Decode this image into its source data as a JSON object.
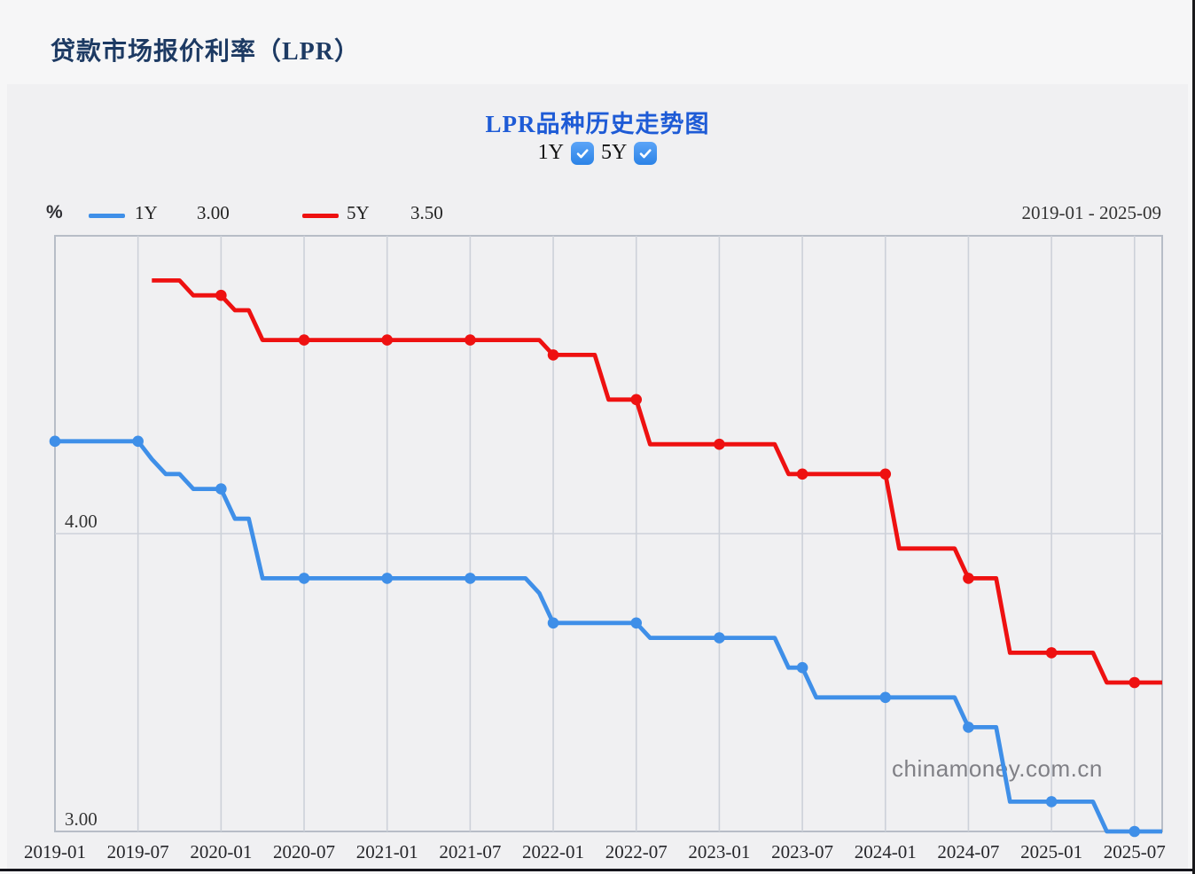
{
  "page": {
    "header_title": "贷款市场报价利率（LPR）",
    "chart_panel_title": "LPR品种历史走势图",
    "toggles": [
      {
        "label": "1Y",
        "checked": true
      },
      {
        "label": "5Y",
        "checked": true
      }
    ],
    "legend": {
      "unit": "%",
      "items": [
        {
          "label": "1Y",
          "value": "3.00"
        },
        {
          "label": "5Y",
          "value": "3.50"
        }
      ]
    },
    "date_range": "2019-01 - 2025-09",
    "watermark": "chinamoney.com.cn",
    "colors": {
      "header_title": "#1d3a63",
      "chart_title": "#1e5bd6",
      "checkbox_blue": "#2e8bf5",
      "line_1y": "#3f8fe8",
      "line_5y": "#ee1111"
    }
  },
  "chart_data": {
    "type": "line",
    "title": "LPR品种历史走势图",
    "x_unit": "month",
    "x_start": "2019-01",
    "x_end": "2025-09",
    "x_tick_labels": [
      "2019-01",
      "2019-07",
      "2020-01",
      "2020-07",
      "2021-01",
      "2021-07",
      "2022-01",
      "2022-07",
      "2023-01",
      "2023-07",
      "2024-01",
      "2024-07",
      "2025-01",
      "2025-07"
    ],
    "tick_every_n_months": 6,
    "markers_at_ticks": true,
    "grid": {
      "vertical": true,
      "horizontal_labeled_only": true
    },
    "legend_position": "top-left",
    "ylabel": "%",
    "y_axis": {
      "min": 3.0,
      "max": 5.0,
      "labeled_gridlines": [
        {
          "value": 4.0,
          "label": "4.00"
        },
        {
          "value": 3.0,
          "label": "3.00"
        }
      ]
    },
    "series": [
      {
        "name": "1Y",
        "color": "#3f8fe8",
        "latest": "3.00",
        "values": [
          4.31,
          4.31,
          4.31,
          4.31,
          4.31,
          4.31,
          4.31,
          4.25,
          4.2,
          4.2,
          4.15,
          4.15,
          4.15,
          4.05,
          4.05,
          3.85,
          3.85,
          3.85,
          3.85,
          3.85,
          3.85,
          3.85,
          3.85,
          3.85,
          3.85,
          3.85,
          3.85,
          3.85,
          3.85,
          3.85,
          3.85,
          3.85,
          3.85,
          3.85,
          3.85,
          3.8,
          3.7,
          3.7,
          3.7,
          3.7,
          3.7,
          3.7,
          3.7,
          3.65,
          3.65,
          3.65,
          3.65,
          3.65,
          3.65,
          3.65,
          3.65,
          3.65,
          3.65,
          3.55,
          3.55,
          3.45,
          3.45,
          3.45,
          3.45,
          3.45,
          3.45,
          3.45,
          3.45,
          3.45,
          3.45,
          3.45,
          3.35,
          3.35,
          3.35,
          3.1,
          3.1,
          3.1,
          3.1,
          3.1,
          3.1,
          3.1,
          3.0,
          3.0,
          3.0,
          3.0,
          3.0
        ]
      },
      {
        "name": "5Y",
        "color": "#ee1111",
        "latest": "3.50",
        "values": [
          null,
          null,
          null,
          null,
          null,
          null,
          null,
          4.85,
          4.85,
          4.85,
          4.8,
          4.8,
          4.8,
          4.75,
          4.75,
          4.65,
          4.65,
          4.65,
          4.65,
          4.65,
          4.65,
          4.65,
          4.65,
          4.65,
          4.65,
          4.65,
          4.65,
          4.65,
          4.65,
          4.65,
          4.65,
          4.65,
          4.65,
          4.65,
          4.65,
          4.65,
          4.6,
          4.6,
          4.6,
          4.6,
          4.45,
          4.45,
          4.45,
          4.3,
          4.3,
          4.3,
          4.3,
          4.3,
          4.3,
          4.3,
          4.3,
          4.3,
          4.3,
          4.2,
          4.2,
          4.2,
          4.2,
          4.2,
          4.2,
          4.2,
          4.2,
          3.95,
          3.95,
          3.95,
          3.95,
          3.95,
          3.85,
          3.85,
          3.85,
          3.6,
          3.6,
          3.6,
          3.6,
          3.6,
          3.6,
          3.6,
          3.5,
          3.5,
          3.5,
          3.5,
          3.5
        ]
      }
    ]
  }
}
